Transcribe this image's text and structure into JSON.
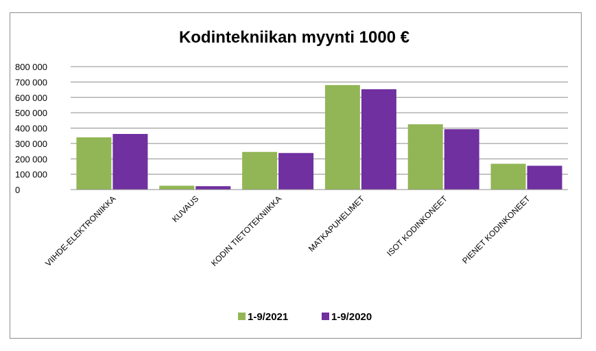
{
  "chart_data": {
    "type": "bar",
    "title": "Kodintekniikan myynti 1000 €",
    "categories": [
      "VIIHDE-ELEKTRONIIKKA",
      "KUVAUS",
      "KODIN TIETOTEKNIIKKA",
      "MATKAPUHELIMET",
      "ISOT KODINKONEET",
      "PIENET KODINKONEET"
    ],
    "series": [
      {
        "name": "1-9/2021",
        "color": "#92b656",
        "values": [
          340000,
          25000,
          245000,
          680000,
          425000,
          168000
        ]
      },
      {
        "name": "1-9/2020",
        "color": "#7030a0",
        "values": [
          362000,
          22000,
          238000,
          653000,
          393000,
          155000
        ]
      }
    ],
    "ylim": [
      0,
      800000
    ],
    "yticks": [
      0,
      100000,
      200000,
      300000,
      400000,
      500000,
      600000,
      700000,
      800000
    ],
    "ytick_labels": [
      "0",
      "100 000",
      "200 000",
      "300 000",
      "400 000",
      "500 000",
      "600 000",
      "700 000",
      "800 000"
    ],
    "grid": true,
    "legend_position": "bottom",
    "xlabel": "",
    "ylabel": ""
  }
}
